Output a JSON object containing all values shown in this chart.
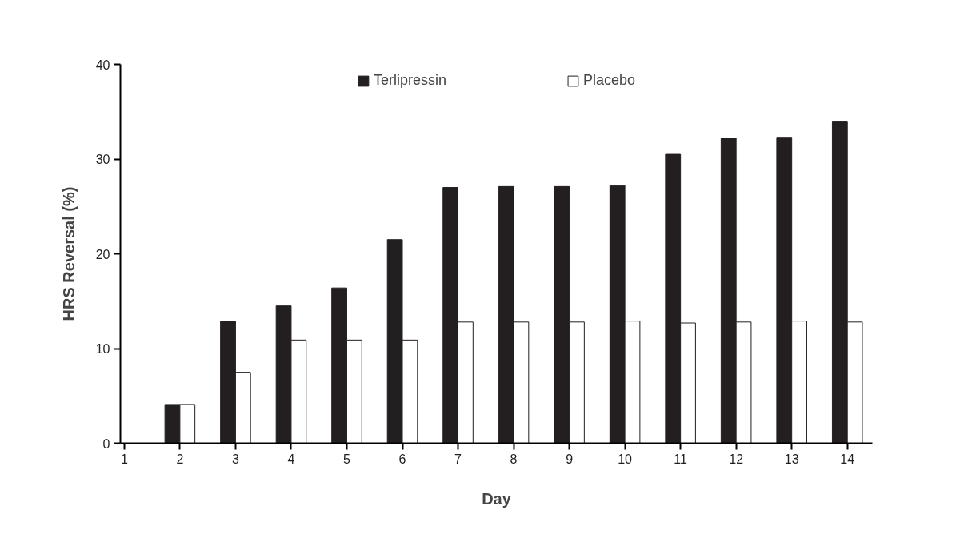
{
  "chart_data": {
    "type": "bar",
    "xlabel": "Day",
    "ylabel": "HRS Reversal (%)",
    "x": [
      1,
      2,
      3,
      4,
      5,
      6,
      7,
      8,
      9,
      10,
      11,
      12,
      13,
      14
    ],
    "series": [
      {
        "name": "Terlipressin",
        "color": "#231f20",
        "values": [
          0,
          4.1,
          12.9,
          14.5,
          16.4,
          21.5,
          27.0,
          27.1,
          27.1,
          27.2,
          30.5,
          32.2,
          32.3,
          34.0
        ]
      },
      {
        "name": "Placebo",
        "color": "#ffffff",
        "values": [
          0,
          4.1,
          7.5,
          10.9,
          10.9,
          10.9,
          12.8,
          12.8,
          12.8,
          12.9,
          12.7,
          12.8,
          12.9,
          12.8
        ]
      }
    ],
    "xlim": [
      0.93,
      14.45
    ],
    "xticks": [
      1,
      2,
      3,
      4,
      5,
      6,
      7,
      8,
      9,
      10,
      11,
      12,
      13,
      14
    ],
    "ylim": [
      0,
      40
    ],
    "yticks": [
      0,
      10,
      20,
      30,
      40
    ],
    "grid": false,
    "legend": "top"
  }
}
